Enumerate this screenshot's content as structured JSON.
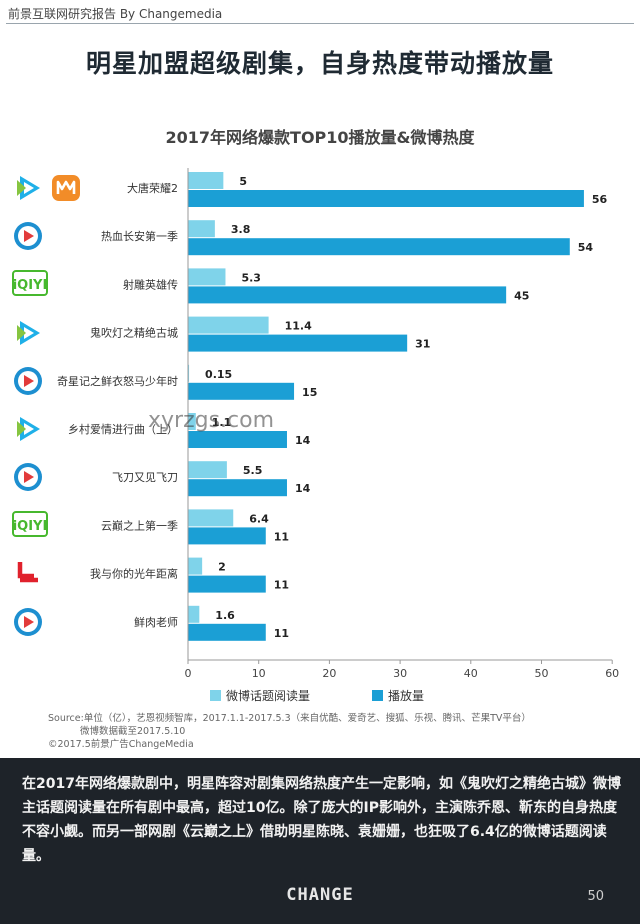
{
  "header": {
    "text": "前景互联网研究报告  By Changemedia"
  },
  "headline": "明星加盟超级剧集，自身热度带动播放量",
  "chart_data": {
    "type": "bar",
    "orientation": "horizontal",
    "title": "2017年网络爆款TOP10播放量&微博热度",
    "categories": [
      "大唐荣耀2",
      "热血长安第一季",
      "射雕英雄传",
      "鬼吹灯之精绝古城",
      "奇星记之鲜衣怒马少年时",
      "乡村爱情进行曲（上）",
      "飞刀又见飞刀",
      "云巅之上第一季",
      "我与你的光年距离",
      "鲜肉老师"
    ],
    "series": [
      {
        "name": "微博话题阅读量",
        "color": "#7fd3ea",
        "values": [
          5,
          3.8,
          5.3,
          11.4,
          0.15,
          1.1,
          5.5,
          6.4,
          2,
          1.6
        ]
      },
      {
        "name": "播放量",
        "color": "#1b9fd5",
        "values": [
          56,
          54,
          45,
          31,
          15,
          14,
          14,
          11,
          11,
          11
        ]
      }
    ],
    "xlim": [
      0,
      60
    ],
    "xticks": [
      0,
      10,
      20,
      30,
      40,
      50,
      60
    ],
    "legend_position": "bottom",
    "grid": false
  },
  "platform_icons": [
    [
      "tencent-video-icon",
      "mango-tv-icon"
    ],
    [
      "youku-icon"
    ],
    [
      "iqiyi-icon"
    ],
    [
      "tencent-video-icon"
    ],
    [
      "youku-icon"
    ],
    [
      "tencent-video-icon"
    ],
    [
      "youku-icon"
    ],
    [
      "iqiyi-icon"
    ],
    [
      "letv-icon"
    ],
    [
      "youku-icon"
    ]
  ],
  "brand_colors": {
    "tencent": "#1fb0e8",
    "mango": "#f28c28",
    "youku": "#1d8fd0",
    "iqiyi": "#47b82e",
    "letv": "#e0212c"
  },
  "watermark": "xyrzgs.com",
  "notes": [
    "Source:单位（亿），艺恩视频智库，2017.1.1-2017.5.3（来自优酷、爱奇艺、搜狐、乐视、腾讯、芒果TV平台）",
    "微博数据截至2017.5.10",
    "©2017.5前景广告ChangeMedia"
  ],
  "footer": {
    "summary": "在2017年网络爆款剧中，明星阵容对剧集网络热度产生一定影响，如《鬼吹灯之精绝古城》微博主话题阅读量在所有剧中最高，超过10亿。除了庞大的IP影响外，主演陈乔恩、靳东的自身热度不容小觑。而另一部网剧《云巅之上》借助明星陈晓、袁姗姗，也狂吸了6.4亿的微博话题阅读量。",
    "brand": "CHANGE",
    "page_number": "50"
  }
}
